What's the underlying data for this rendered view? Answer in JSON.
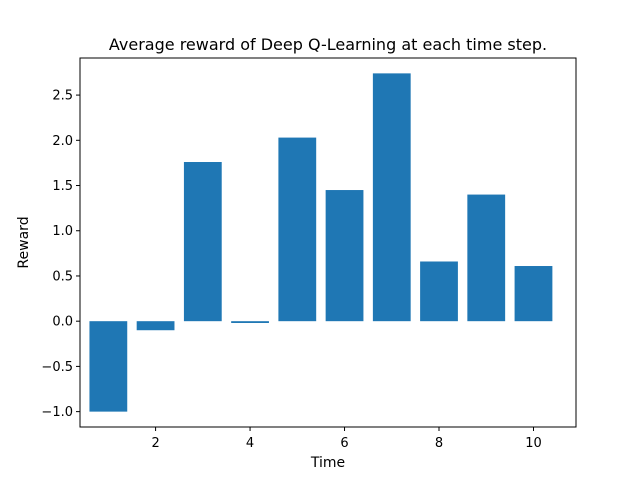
{
  "chart_data": {
    "type": "bar",
    "title": "Average reward of Deep Q-Learning at each time step.",
    "xlabel": "Time",
    "ylabel": "Reward",
    "x": [
      1,
      2,
      3,
      4,
      5,
      6,
      7,
      8,
      9,
      10
    ],
    "values": [
      -1.0,
      -0.1,
      1.76,
      -0.02,
      2.03,
      1.45,
      2.74,
      0.66,
      1.4,
      0.61
    ],
    "xlim": [
      0.4,
      10.9
    ],
    "ylim": [
      -1.17,
      2.91
    ],
    "xticks": [
      2,
      4,
      6,
      8,
      10
    ],
    "xtick_labels": [
      "2",
      "4",
      "6",
      "8",
      "10"
    ],
    "yticks": [
      -1.0,
      -0.5,
      0.0,
      0.5,
      1.0,
      1.5,
      2.0,
      2.5
    ],
    "ytick_labels": [
      "−1.0",
      "−0.5",
      "0.0",
      "0.5",
      "1.0",
      "1.5",
      "2.0",
      "2.5"
    ],
    "bar_width": 0.8,
    "bar_color": "#1f77b4",
    "grid": false,
    "legend": "none"
  }
}
